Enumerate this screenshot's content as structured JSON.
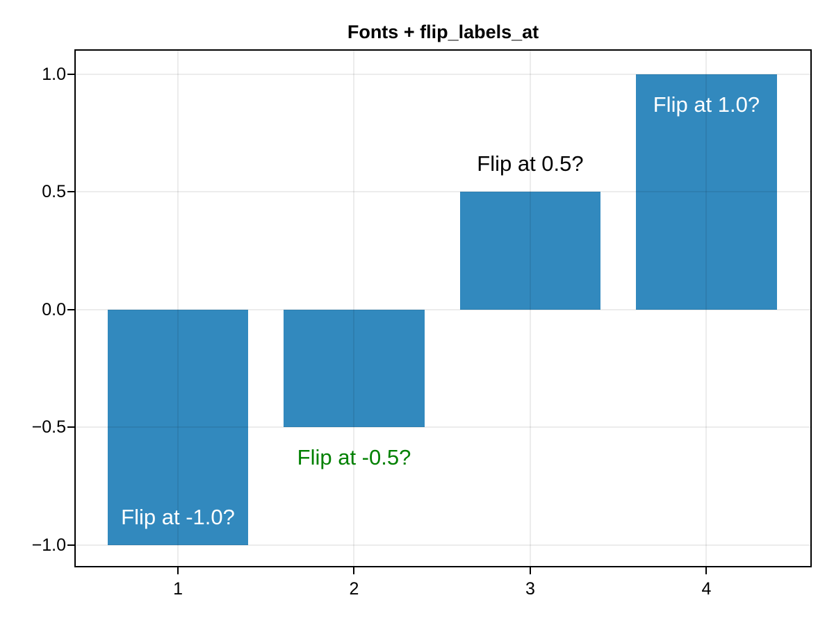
{
  "chart_data": {
    "type": "bar",
    "title": "Fonts + flip_labels_at",
    "xlabel": "",
    "ylabel": "",
    "x": [
      1,
      2,
      3,
      4
    ],
    "values": [
      -1.0,
      -0.5,
      0.5,
      1.0
    ],
    "bar_width": 0.8,
    "bar_color": "#3289be",
    "bar_labels": [
      {
        "text": "Flip at -1.0?",
        "color": "#ffffff",
        "placement": "inside-bottom"
      },
      {
        "text": "Flip at -0.5?",
        "color": "#008000",
        "placement": "below-bar"
      },
      {
        "text": "Flip at 0.5?",
        "color": "#000000",
        "placement": "above-bar"
      },
      {
        "text": "Flip at 1.0?",
        "color": "#ffffff",
        "placement": "inside-top"
      }
    ],
    "xticks": {
      "values": [
        1,
        2,
        3,
        4
      ],
      "labels": [
        "1",
        "2",
        "3",
        "4"
      ]
    },
    "yticks": {
      "values": [
        1.0,
        0.5,
        0.0,
        -0.5,
        -1.0
      ],
      "labels": [
        "1.0",
        "0.5",
        "0.0",
        "−0.5",
        "−1.0"
      ]
    },
    "xlim": [
      0.42,
      4.59
    ],
    "ylim": [
      -1.09,
      1.1
    ],
    "grid": true,
    "grid_over_bars": true,
    "legend": null,
    "frame_color": "#000000",
    "background_color": "#ffffff"
  }
}
